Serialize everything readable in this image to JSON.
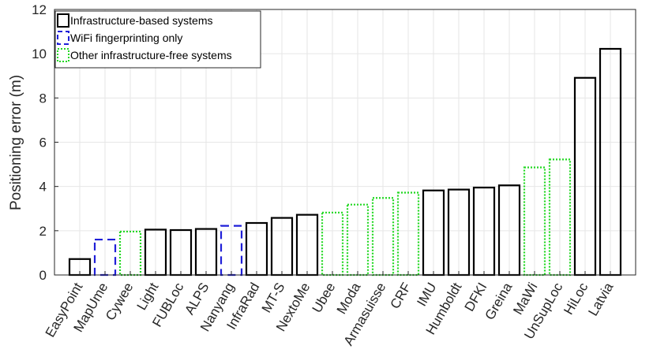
{
  "chart_data": {
    "type": "bar",
    "title": "",
    "xlabel": "",
    "ylabel": "Positioning error (m)",
    "ylim": [
      0,
      12
    ],
    "yticks": [
      0,
      2,
      4,
      6,
      8,
      10,
      12
    ],
    "grid": true,
    "legend_position": "top-left",
    "categories": [
      "EasyPoint",
      "MapUme",
      "Cywee",
      "Light",
      "FUBLoc",
      "ALPS",
      "Nanyang",
      "InfraRad",
      "MT-S",
      "NextoMe",
      "Ubee",
      "Moda",
      "Armasuisse",
      "CRF",
      "IMU",
      "Humboldt",
      "DFKI",
      "Greina",
      "MaWi",
      "UnSupLoc",
      "HiLoc",
      "Latvia"
    ],
    "values": [
      0.72,
      1.6,
      1.96,
      2.05,
      2.03,
      2.08,
      2.22,
      2.35,
      2.58,
      2.72,
      2.82,
      3.18,
      3.48,
      3.72,
      3.82,
      3.86,
      3.95,
      4.05,
      4.86,
      5.22,
      8.91,
      10.22
    ],
    "groups": [
      "infra",
      "wifi",
      "other",
      "infra",
      "infra",
      "infra",
      "wifi",
      "infra",
      "infra",
      "infra",
      "other",
      "other",
      "other",
      "other",
      "infra",
      "infra",
      "infra",
      "infra",
      "other",
      "other",
      "infra",
      "infra"
    ],
    "legend": [
      {
        "key": "infra",
        "label": "Infrastructure-based systems",
        "color": "#000000",
        "dash": "solid"
      },
      {
        "key": "wifi",
        "label": "WiFi fingerprinting only",
        "color": "#1f1fd8",
        "dash": "dashed"
      },
      {
        "key": "other",
        "label": "Other infrastructure-free systems",
        "color": "#22d822",
        "dash": "dotted"
      }
    ]
  }
}
